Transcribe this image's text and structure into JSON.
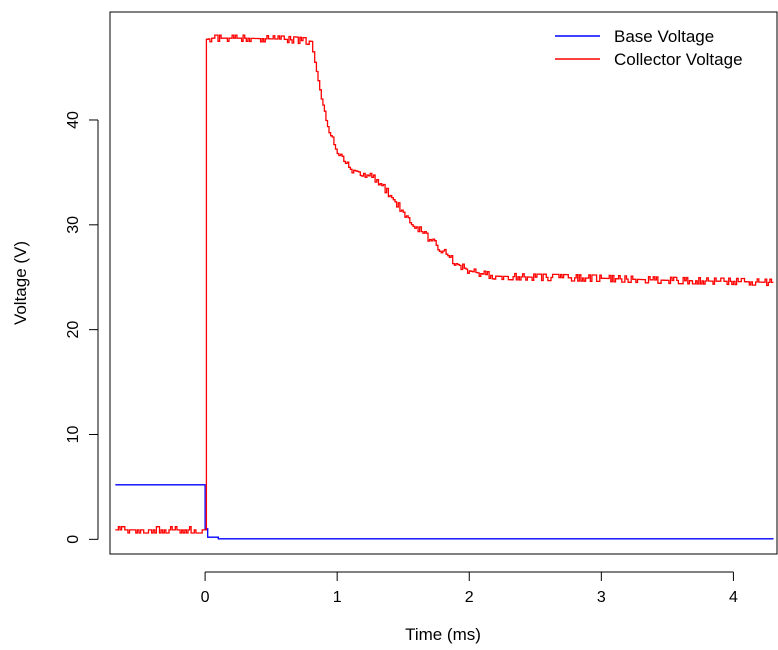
{
  "chart_data": {
    "type": "line",
    "xlabel": "Time (ms)",
    "ylabel": "Voltage (V)",
    "xlim": [
      -0.72,
      4.33
    ],
    "ylim": [
      -1.4,
      50.3
    ],
    "xticks": [
      0,
      1,
      2,
      3,
      4
    ],
    "yticks": [
      0,
      10,
      20,
      30,
      40
    ],
    "grid": false,
    "legend_position": "top-right",
    "series": [
      {
        "name": "Base Voltage",
        "color": "#0000ff",
        "x": [
          -0.68,
          -0.01,
          0.0,
          0.02,
          0.1,
          4.3
        ],
        "y": [
          5.2,
          5.2,
          1.0,
          0.2,
          0.05,
          0.0
        ]
      },
      {
        "name": "Collector Voltage",
        "color": "#ff0000",
        "noise_amplitude": 0.3,
        "x": [
          -0.68,
          -0.01,
          0.01,
          0.05,
          0.3,
          0.6,
          0.8,
          0.83,
          0.88,
          0.95,
          1.0,
          1.1,
          1.2,
          1.3,
          1.4,
          1.5,
          1.6,
          1.7,
          1.8,
          1.9,
          2.0,
          2.1,
          2.2,
          2.5,
          3.0,
          3.5,
          4.0,
          4.3
        ],
        "y": [
          0.9,
          0.9,
          47.7,
          47.8,
          47.8,
          47.7,
          47.5,
          45.5,
          42.0,
          38.5,
          36.8,
          35.3,
          34.9,
          34.3,
          32.8,
          31.2,
          29.8,
          28.6,
          27.5,
          26.3,
          25.6,
          25.3,
          25.1,
          25.0,
          24.9,
          24.7,
          24.6,
          24.5
        ]
      }
    ]
  }
}
